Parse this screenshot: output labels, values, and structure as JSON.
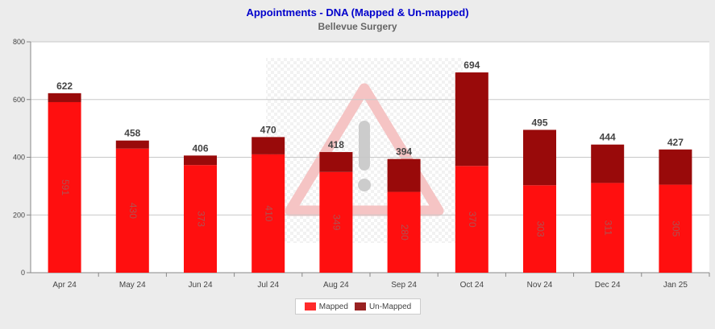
{
  "chart_data": {
    "type": "bar",
    "stacked": true,
    "title": "Appointments - DNA (Mapped & Un-mapped)",
    "subtitle": "Bellevue Surgery",
    "categories": [
      "Apr 24",
      "May 24",
      "Jun 24",
      "Jul 24",
      "Aug 24",
      "Sep 24",
      "Oct 24",
      "Nov 24",
      "Dec 24",
      "Jan 25"
    ],
    "series": [
      {
        "name": "Mapped",
        "color": "#ff0f0f",
        "values": [
          591,
          430,
          373,
          410,
          349,
          280,
          370,
          303,
          311,
          305
        ]
      },
      {
        "name": "Un-Mapped",
        "color": "#990a0a",
        "values": [
          31,
          28,
          33,
          60,
          69,
          114,
          324,
          192,
          133,
          122
        ]
      }
    ],
    "totals": [
      622,
      458,
      406,
      470,
      418,
      394,
      694,
      495,
      444,
      427
    ],
    "yticks": [
      0,
      200,
      400,
      600,
      800
    ],
    "ylim": [
      0,
      800
    ],
    "grid": true,
    "legend": "bottom-center",
    "watermark_icon": "warning-triangle-icon"
  },
  "legend": {
    "mapped_label": "Mapped",
    "unmapped_label": "Un-Mapped"
  }
}
